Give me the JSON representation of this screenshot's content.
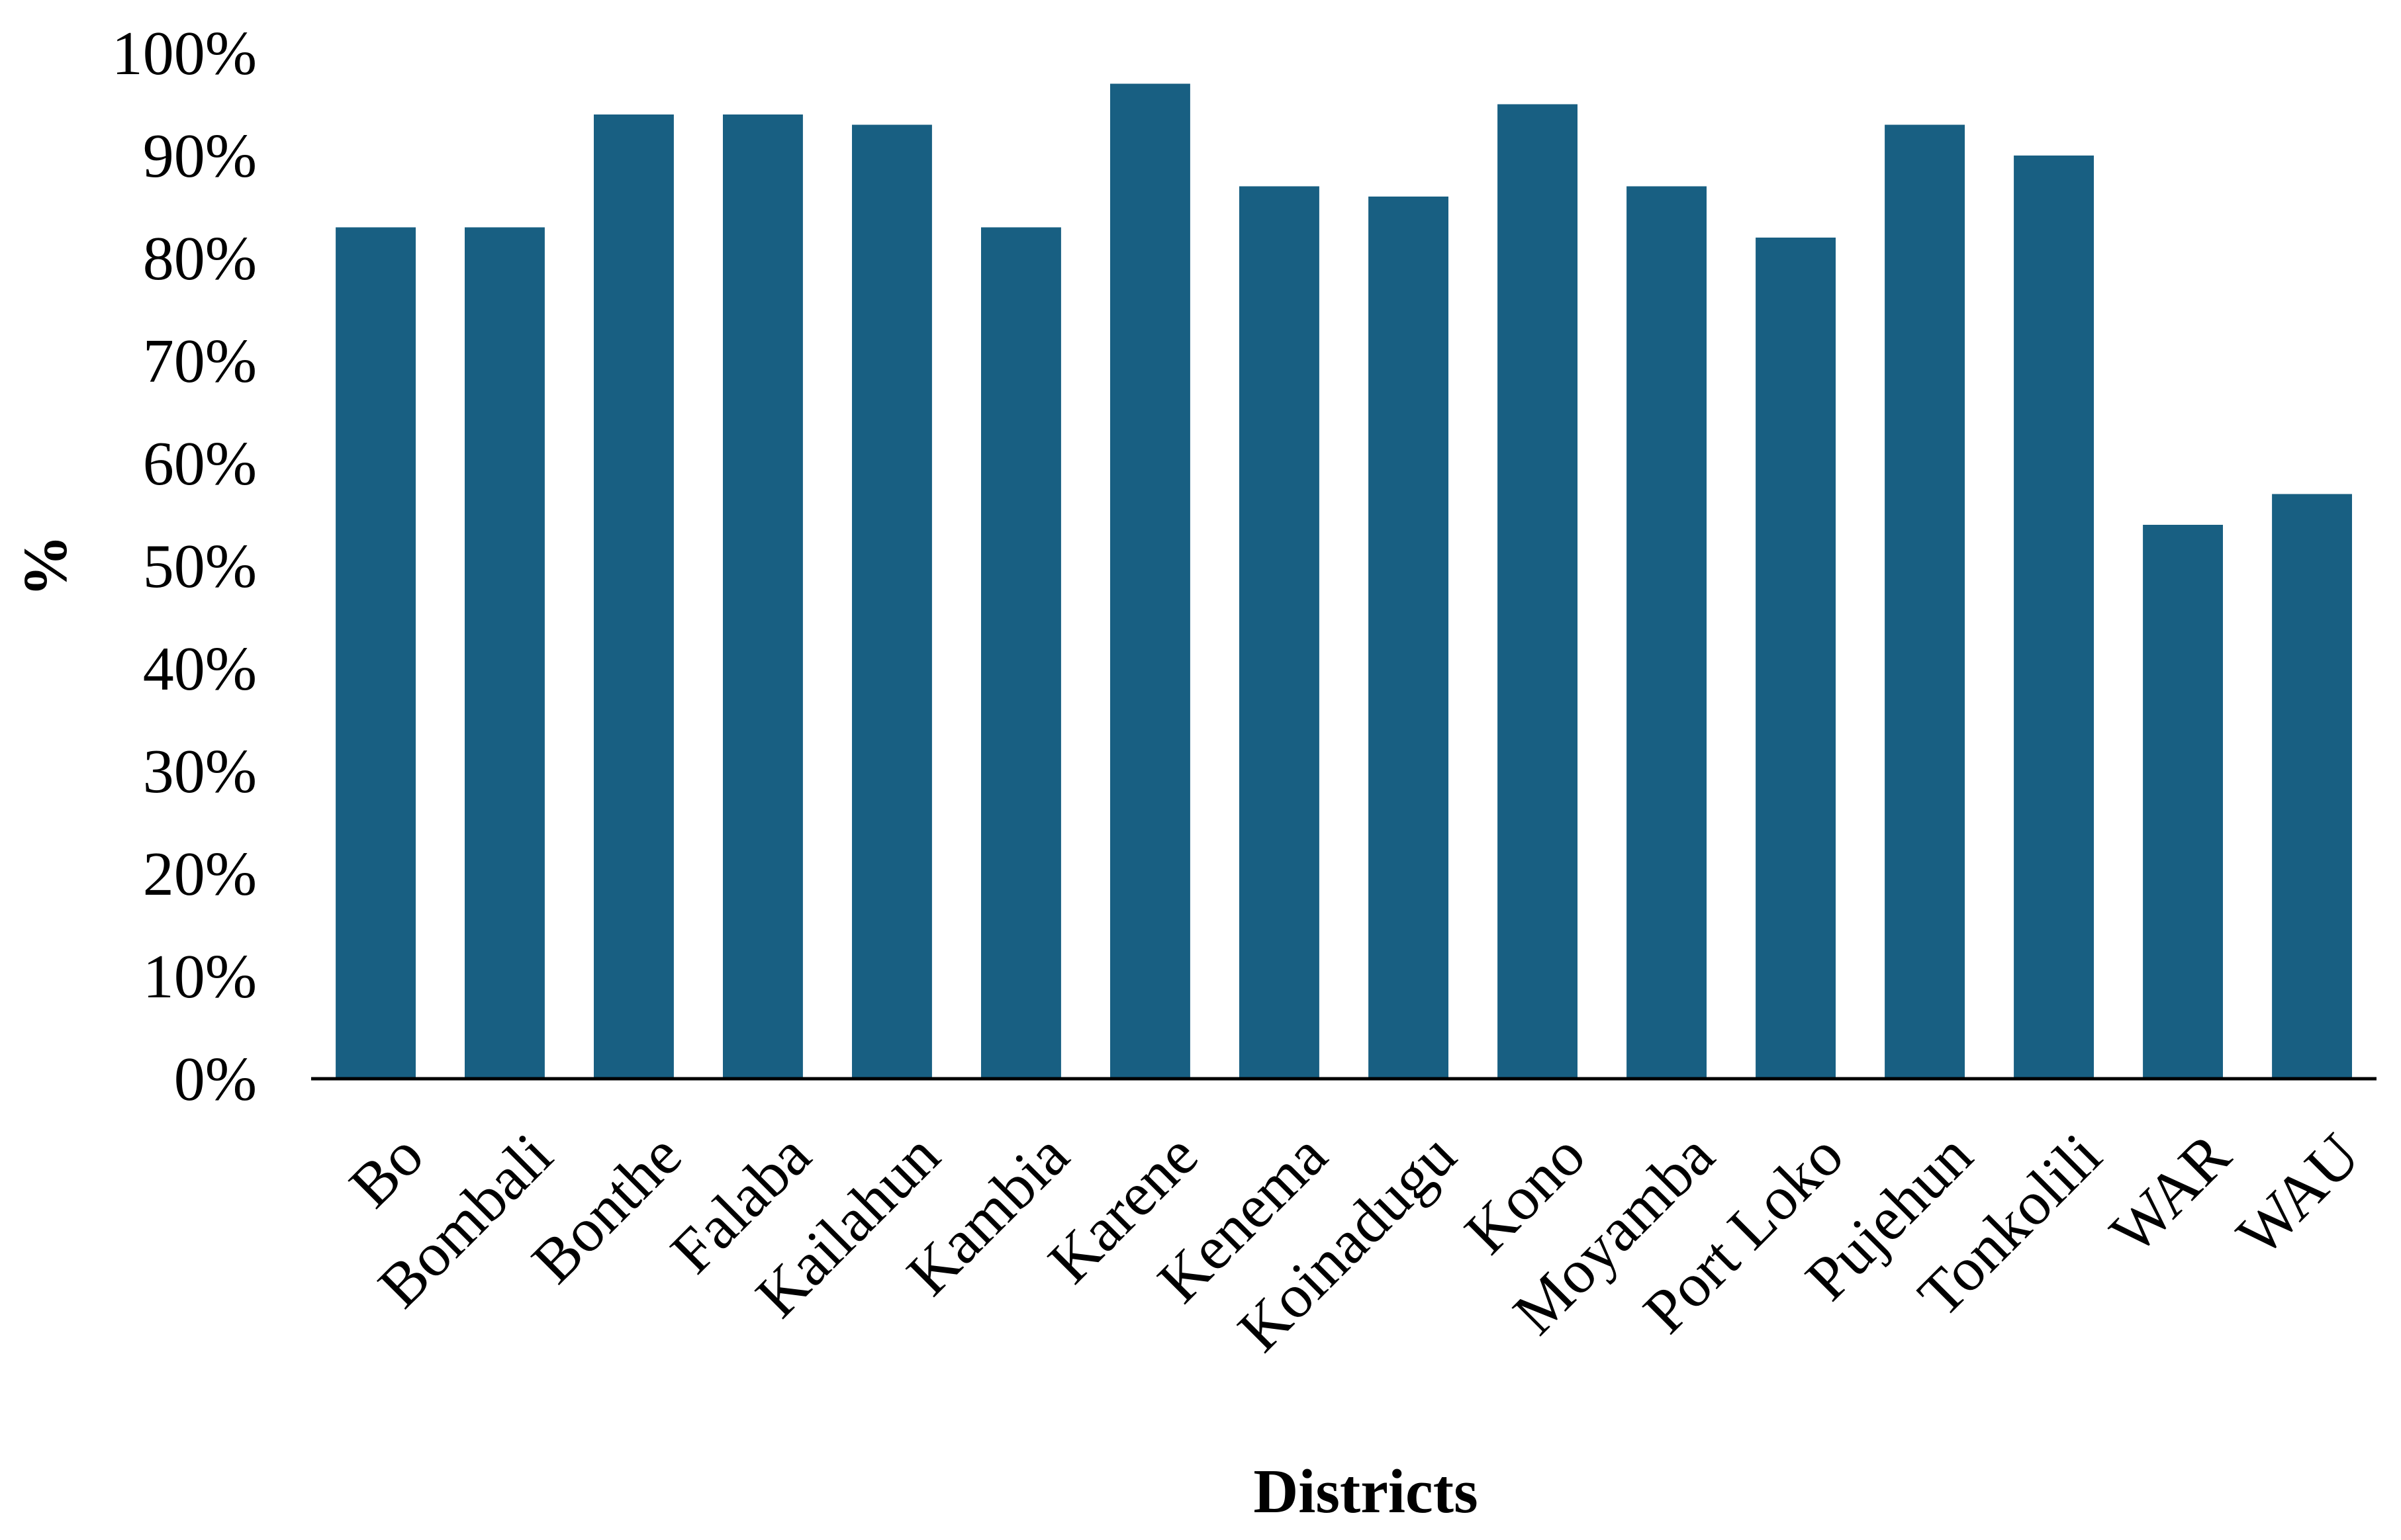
{
  "chart_data": {
    "type": "bar",
    "title": "",
    "xlabel": "Districts",
    "ylabel": "%",
    "ylim": [
      0,
      100
    ],
    "yticks": [
      "0%",
      "10%",
      "20%",
      "30%",
      "40%",
      "50%",
      "60%",
      "70%",
      "80%",
      "90%",
      "100%"
    ],
    "grid": false,
    "legend": "none",
    "categories": [
      "Bo",
      "Bombali",
      "Bonthe",
      "Falaba",
      "Kailahun",
      "Kambia",
      "Karene",
      "Kenema",
      "Koinadugu",
      "Kono",
      "Moyamba",
      "Port Loko",
      "Pujehun",
      "Tonkolili",
      "WAR",
      "WAU"
    ],
    "values": [
      83,
      83,
      94,
      94,
      93,
      83,
      97,
      87,
      86,
      95,
      87,
      82,
      93,
      90,
      54,
      57
    ],
    "bar_color": "#185f82"
  }
}
